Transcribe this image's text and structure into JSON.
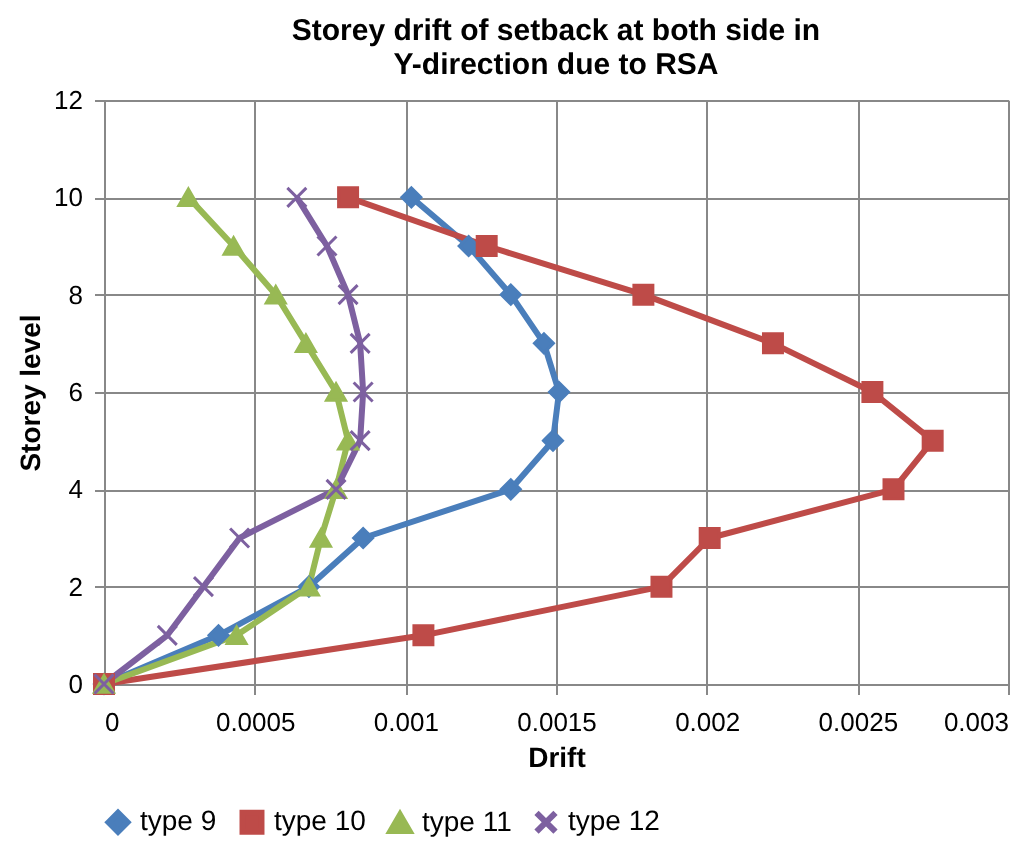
{
  "chart_data": {
    "type": "line",
    "title": "Storey drift of setback at both side in Y-direction due to RSA",
    "xlabel": "Drift",
    "ylabel": "Storey level",
    "series": [
      {
        "name": "type 9",
        "color": "#4a7ebb",
        "marker": "diamond",
        "x": [
          0,
          0.00038,
          0.00068,
          0.00086,
          0.00135,
          0.00149,
          0.00151,
          0.00146,
          0.00135,
          0.00121,
          0.00102
        ],
        "values": [
          0,
          1,
          2,
          3,
          4,
          5,
          6,
          7,
          8,
          9,
          10
        ]
      },
      {
        "name": "type 10",
        "color": "#be4b48",
        "marker": "square",
        "x": [
          0,
          0.00106,
          0.00185,
          0.00201,
          0.00262,
          0.00275,
          0.00255,
          0.00222,
          0.00179,
          0.00127,
          0.00081
        ],
        "values": [
          0,
          1,
          2,
          3,
          4,
          5,
          6,
          7,
          8,
          9,
          10
        ]
      },
      {
        "name": "type 11",
        "color": "#98b954",
        "marker": "triangle",
        "x": [
          0,
          0.00044,
          0.00068,
          0.00072,
          0.00077,
          0.00081,
          0.00077,
          0.00067,
          0.00057,
          0.00043,
          0.00028
        ],
        "values": [
          0,
          1,
          2,
          3,
          4,
          5,
          6,
          7,
          8,
          9,
          10
        ]
      },
      {
        "name": "type 12",
        "color": "#7d60a0",
        "marker": "cross",
        "x": [
          0,
          0.00021,
          0.00033,
          0.00045,
          0.00077,
          0.00085,
          0.00086,
          0.00085,
          0.00081,
          0.00074,
          0.00064
        ],
        "values": [
          0,
          1,
          2,
          3,
          4,
          5,
          6,
          7,
          8,
          9,
          10
        ]
      }
    ],
    "xlim": [
      0,
      0.003
    ],
    "xticks": [
      0,
      0.0005,
      0.001,
      0.0015,
      0.002,
      0.0025,
      0.003
    ],
    "ylim": [
      0,
      12
    ],
    "yticks": [
      0,
      2,
      4,
      6,
      8,
      10,
      12
    ],
    "grid": true,
    "legend": "bottom",
    "line_style": "solid"
  }
}
